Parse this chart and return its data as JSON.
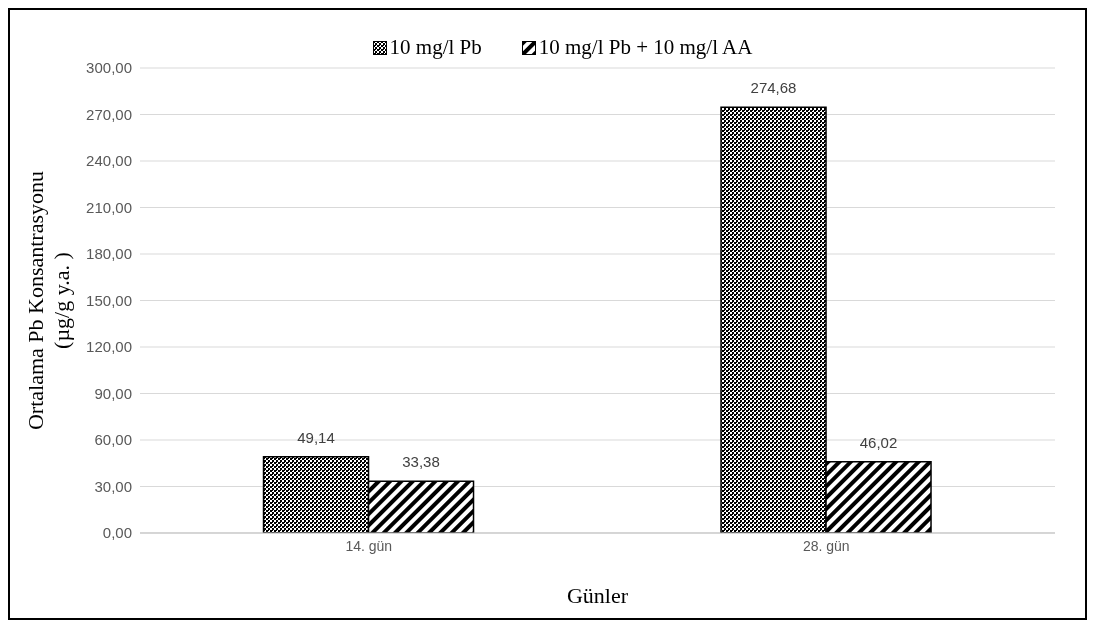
{
  "chart_data": {
    "type": "bar",
    "xlabel": "Günler",
    "ylabel": "Ortalama Pb Konsantrasyonu\n(µg/g y.a. )",
    "categories": [
      "14. gün",
      "28. gün"
    ],
    "series": [
      {
        "name": "10 mg/l Pb",
        "color": "#000000",
        "values": [
          49.14,
          274.68
        ],
        "value_labels": [
          "49,14",
          "274,68"
        ]
      },
      {
        "name": "10 mg/l Pb + 10 mg/l AA",
        "color": "#000000",
        "values": [
          33.38,
          46.02
        ],
        "value_labels": [
          "33,38",
          "46,02"
        ]
      }
    ],
    "ylim": [
      0,
      300
    ],
    "yticks": [
      {
        "value": 0,
        "label": "0,00"
      },
      {
        "value": 30,
        "label": "30,00"
      },
      {
        "value": 60,
        "label": "60,00"
      },
      {
        "value": 90,
        "label": "90,00"
      },
      {
        "value": 120,
        "label": "120,00"
      },
      {
        "value": 150,
        "label": "150,00"
      },
      {
        "value": 180,
        "label": "180,00"
      },
      {
        "value": 210,
        "label": "210,00"
      },
      {
        "value": 240,
        "label": "240,00"
      },
      {
        "value": 270,
        "label": "270,00"
      },
      {
        "value": 300,
        "label": "300,00"
      }
    ],
    "grid": "y",
    "legend": "top"
  }
}
